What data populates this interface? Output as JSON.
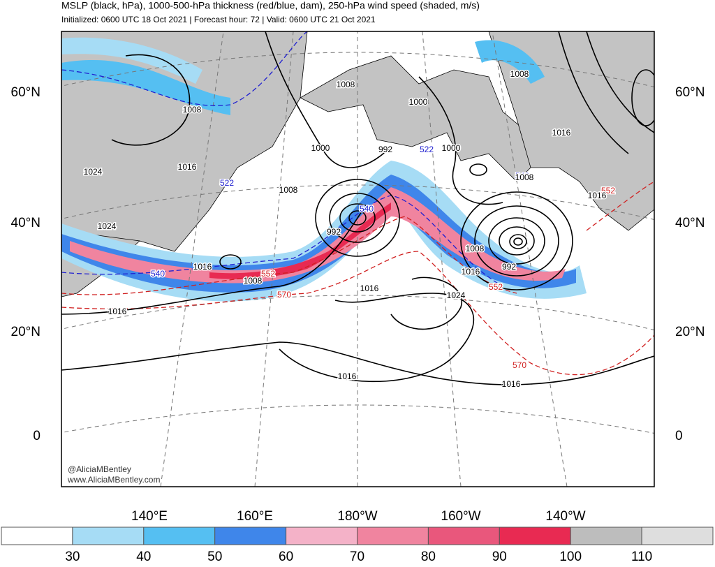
{
  "header": {
    "title": "MSLP (black, hPa), 1000-500-hPa thickness (red/blue, dam), 250-hPa wind speed (shaded, m/s)",
    "subtitle": "Initialized: 0600 UTC 18 Oct 2021 | Forecast hour: 72 | Valid: 0600 UTC 21 Oct 2021"
  },
  "lat_labels": [
    "60°N",
    "40°N",
    "20°N",
    "0"
  ],
  "lon_labels": [
    "140°E",
    "160°E",
    "180°W",
    "160°W",
    "140°W"
  ],
  "contour_labels": [
    {
      "text": "1008",
      "color": "#000000"
    },
    {
      "text": "1008",
      "color": "#000000"
    },
    {
      "text": "1024",
      "color": "#000000"
    },
    {
      "text": "1016",
      "color": "#000000"
    },
    {
      "text": "522",
      "color": "#2020d0"
    },
    {
      "text": "1024",
      "color": "#000000"
    },
    {
      "text": "1016",
      "color": "#000000"
    },
    {
      "text": "540",
      "color": "#2020d0"
    },
    {
      "text": "1008",
      "color": "#000000"
    },
    {
      "text": "552",
      "color": "#d02020"
    },
    {
      "text": "570",
      "color": "#d02020"
    },
    {
      "text": "1016",
      "color": "#000000"
    },
    {
      "text": "1000",
      "color": "#000000"
    },
    {
      "text": "992",
      "color": "#000000"
    },
    {
      "text": "1000",
      "color": "#000000"
    },
    {
      "text": "522",
      "color": "#2020d0"
    },
    {
      "text": "1000",
      "color": "#000000"
    },
    {
      "text": "1008",
      "color": "#000000"
    },
    {
      "text": "540",
      "color": "#2020d0"
    },
    {
      "text": "992",
      "color": "#000000"
    },
    {
      "text": "540",
      "color": "#2020d0"
    },
    {
      "text": "1008",
      "color": "#000000"
    },
    {
      "text": "1008",
      "color": "#000000"
    },
    {
      "text": "1016",
      "color": "#000000"
    },
    {
      "text": "552",
      "color": "#d02020"
    },
    {
      "text": "1016",
      "color": "#000000"
    },
    {
      "text": "1008",
      "color": "#000000"
    },
    {
      "text": "992",
      "color": "#000000"
    },
    {
      "text": "1016",
      "color": "#000000"
    },
    {
      "text": "552",
      "color": "#d02020"
    },
    {
      "text": "1024",
      "color": "#000000"
    },
    {
      "text": "1016",
      "color": "#000000"
    },
    {
      "text": "1016",
      "color": "#000000"
    },
    {
      "text": "570",
      "color": "#d02020"
    },
    {
      "text": "1016",
      "color": "#000000"
    }
  ],
  "credits": [
    "@AliciaMBentley",
    "www.AliciaMBentley.com"
  ],
  "colorbar": {
    "ticks": [
      30,
      40,
      50,
      60,
      70,
      80,
      90,
      100,
      110
    ],
    "colors": [
      "#ffffff",
      "#a6dcf5",
      "#55bff2",
      "#3f86ea",
      "#f4b2c8",
      "#f0849f",
      "#e9577c",
      "#e82a52",
      "#bdbdbd",
      "#dedede"
    ]
  }
}
